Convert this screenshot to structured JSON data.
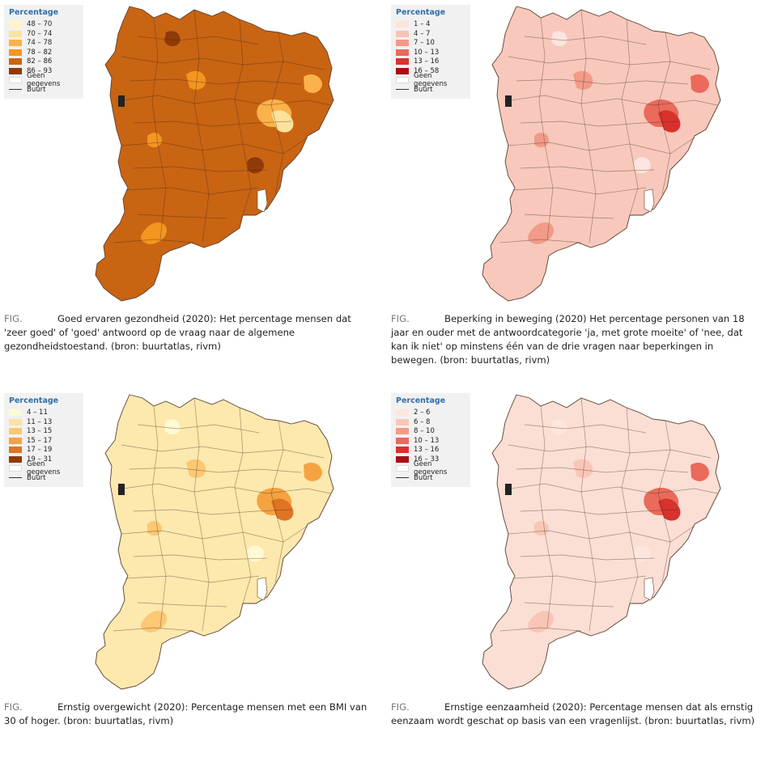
{
  "panels": [
    {
      "legend_title": "Percentage",
      "classes": [
        {
          "label": "48 – 70",
          "color": "#fff6c2"
        },
        {
          "label": "70 – 74",
          "color": "#fde29a"
        },
        {
          "label": "74 – 78",
          "color": "#fbb24a"
        },
        {
          "label": "78 – 82",
          "color": "#f3951f"
        },
        {
          "label": "82 – 86",
          "color": "#cc6412"
        },
        {
          "label": "86 – 93",
          "color": "#8f3a07"
        }
      ],
      "no_data_label": "Geen gegevens",
      "boundary_label": "Buurt",
      "base_color": "#c96413",
      "patch_colors": [
        "#8f3a07",
        "#f3951f",
        "#fbb24a",
        "#fde29a",
        "#8f3a07"
      ],
      "fig_label": "FIG.",
      "caption": "Goed ervaren gezondheid (2020): Het percentage mensen dat 'zeer goed' of 'goed' antwoord op de vraag naar de algemene gezondheidstoestand. (bron: buurtatlas, rivm)"
    },
    {
      "legend_title": "Percentage",
      "classes": [
        {
          "label": "1 – 4",
          "color": "#fde4de"
        },
        {
          "label": "4 – 7",
          "color": "#f9c3b5"
        },
        {
          "label": "7 – 10",
          "color": "#f39a88"
        },
        {
          "label": "10 – 13",
          "color": "#ea6a5b"
        },
        {
          "label": "13 – 16",
          "color": "#d9312c"
        },
        {
          "label": "16 – 58",
          "color": "#a50f15"
        }
      ],
      "no_data_label": "Geen gegevens",
      "boundary_label": "Buurt",
      "base_color": "#f7c8bb",
      "patch_colors": [
        "#fde4de",
        "#f39a88",
        "#ea6a5b",
        "#d9312c",
        "#fde4de"
      ],
      "fig_label": "FIG.",
      "caption": "Beperking in beweging (2020) Het percentage personen van 18 jaar en ouder met de antwoordcategorie 'ja, met grote moeite' of 'nee, dat kan ik niet' op minstens één van de drie vragen naar beperkingen in bewegen. (bron: buurtatlas, rivm)"
    },
    {
      "legend_title": "Percentage",
      "classes": [
        {
          "label": "4 – 11",
          "color": "#fff9d4"
        },
        {
          "label": "11 – 13",
          "color": "#fde3a3"
        },
        {
          "label": "13 – 15",
          "color": "#fbc874"
        },
        {
          "label": "15 – 17",
          "color": "#f5a340"
        },
        {
          "label": "17 – 19",
          "color": "#df7424"
        },
        {
          "label": "19 – 31",
          "color": "#8f3a07"
        }
      ],
      "no_data_label": "Geen gegevens",
      "boundary_label": "Buurt",
      "base_color": "#fde8ad",
      "patch_colors": [
        "#fff9d4",
        "#fbc874",
        "#f5a340",
        "#df7424",
        "#fff9d4"
      ],
      "fig_label": "FIG.",
      "caption": "Ernstig overgewicht (2020): Percentage mensen met een BMI van 30 of hoger.  (bron: buurtatlas, rivm)"
    },
    {
      "legend_title": "Percentage",
      "classes": [
        {
          "label": "2 – 6",
          "color": "#fde6de"
        },
        {
          "label": "6 – 8",
          "color": "#f9c6b6"
        },
        {
          "label": "8 – 10",
          "color": "#f39a88"
        },
        {
          "label": "10 – 13",
          "color": "#ea6a5b"
        },
        {
          "label": "13 – 16",
          "color": "#d9312c"
        },
        {
          "label": "16 – 33",
          "color": "#a50f15"
        }
      ],
      "no_data_label": "Geen gegevens",
      "boundary_label": "Buurt",
      "base_color": "#fbded4",
      "patch_colors": [
        "#fde6de",
        "#f9c6b6",
        "#ea6a5b",
        "#d9312c",
        "#fde6de"
      ],
      "fig_label": "FIG.",
      "caption": "Ernstige eenzaamheid (2020): Percentage mensen dat als ernstig eenzaam wordt geschat op basis van een vragenlijst. (bron: buurtatlas, rivm)"
    }
  ]
}
